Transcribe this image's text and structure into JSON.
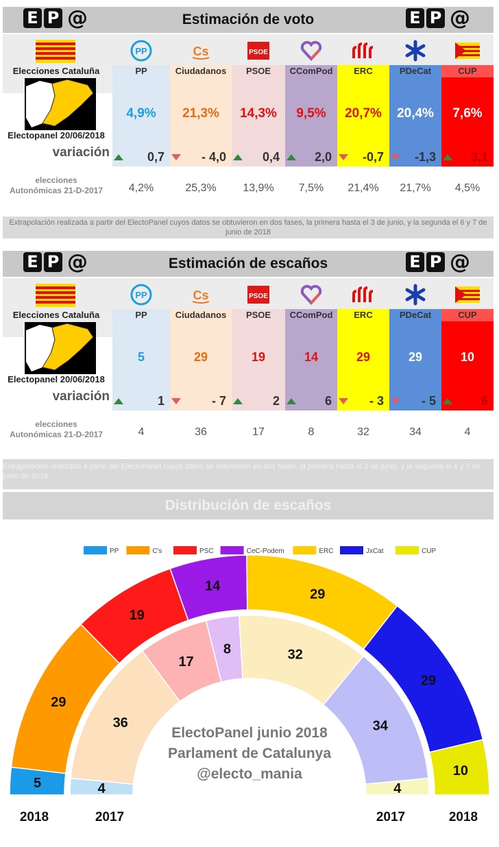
{
  "parties": [
    {
      "name": "PP",
      "color": "#dce9f5",
      "val_color": "#1aa0e0",
      "icon": "pp-logo-icon"
    },
    {
      "name": "Ciudadanos",
      "color": "#fde6d2",
      "val_color": "#e86c10",
      "icon": "cs-logo-icon"
    },
    {
      "name": "PSOE",
      "color": "#f3dada",
      "val_color": "#e01010",
      "icon": "psoe-logo-icon"
    },
    {
      "name": "CComPod",
      "color": "#b9a6cc",
      "val_color": "#e01010",
      "icon": "heart-logo-icon"
    },
    {
      "name": "ERC",
      "color": "#ffff00",
      "val_color": "#e01010",
      "icon": "erc-logo-icon"
    },
    {
      "name": "PDeCat",
      "color": "#5b8ed8",
      "val_color": "#ffffff",
      "icon": "star-logo-icon"
    },
    {
      "name": "CUP",
      "color": "#ff0000",
      "val_color": "#ffffff",
      "icon": "cup-flag-icon"
    }
  ],
  "header_labels": {
    "colname_bg_cup": "#ff5050"
  },
  "section1": {
    "title": "Estimación de voto",
    "left_header": "Elecciones Cataluña",
    "panel_label": "Electopanel 20/06/2018",
    "variacion_label": "variación",
    "prev_label_1": "elecciones",
    "prev_label_2": "Autonómicas 21-D-2017",
    "values": [
      "4,9%",
      "21,3%",
      "14,3%",
      "9,5%",
      "20,7%",
      "20,4%",
      "7,6%"
    ],
    "variations": [
      {
        "dir": "up",
        "text": "0,7"
      },
      {
        "dir": "down",
        "text": "- 4,0"
      },
      {
        "dir": "up",
        "text": "0,4"
      },
      {
        "dir": "up",
        "text": "2,0"
      },
      {
        "dir": "down",
        "text": "-0,7"
      },
      {
        "dir": "down",
        "text": "-1,3"
      },
      {
        "dir": "up",
        "text": "3,1"
      }
    ],
    "previous": [
      "4,2%",
      "25,3%",
      "13,9%",
      "7,5%",
      "21,4%",
      "21,7%",
      "4,5%"
    ],
    "note": "Extrapolación realizada a partir del ElectoPanel cuyos datos se obtuvieron en dos fases, la primera hasta el 3 de junio, y la segunda el 6 y 7 de junio de 2018"
  },
  "section2": {
    "title": "Estimación de escaños",
    "left_header": "Elecciones Cataluña",
    "panel_label": "Electopanel 20/06/2018",
    "variacion_label": "variación",
    "prev_label_1": "elecciones",
    "prev_label_2": "Autonómicas 21-D-2017",
    "values": [
      "5",
      "29",
      "19",
      "14",
      "29",
      "29",
      "10"
    ],
    "variations": [
      {
        "dir": "up",
        "text": "1"
      },
      {
        "dir": "down",
        "text": "-  7"
      },
      {
        "dir": "up",
        "text": "2"
      },
      {
        "dir": "up",
        "text": "6"
      },
      {
        "dir": "down",
        "text": "-  3"
      },
      {
        "dir": "down",
        "text": "-  5"
      },
      {
        "dir": "up",
        "text": "6"
      }
    ],
    "previous": [
      "4",
      "36",
      "17",
      "8",
      "32",
      "34",
      "4"
    ],
    "note": "Extrapolación realizada a partir del ElectoPanel cuyos datos se obtuvieron en dos fases, la primera hasta el 3 de junio, y la segunda el 6 y 7 de junio de 2018"
  },
  "logo": {
    "e": "E",
    "p": "P",
    "at": "@"
  },
  "distribution_title": "Distribución de escaños",
  "chart_data": {
    "type": "hemicycle",
    "legend": [
      {
        "name": "PP",
        "color": "#1a9ae8"
      },
      {
        "name": "C's",
        "color": "#ff9900"
      },
      {
        "name": "PSC",
        "color": "#ff1a1a"
      },
      {
        "name": "CeC-Podem",
        "color": "#9b1ae8"
      },
      {
        "name": "ERC",
        "color": "#ffcc00"
      },
      {
        "name": "JxCat",
        "color": "#1a1ae8"
      },
      {
        "name": "CUP",
        "color": "#e8e800"
      }
    ],
    "series": [
      {
        "name": "2018",
        "values": [
          5,
          29,
          19,
          14,
          29,
          29,
          10
        ],
        "colors": [
          "#1a9ae8",
          "#ff9900",
          "#ff1a1a",
          "#9b1ae8",
          "#ffcc00",
          "#1a1ae8",
          "#e8e800"
        ]
      },
      {
        "name": "2017",
        "values": [
          4,
          36,
          17,
          8,
          32,
          34,
          4
        ],
        "colors": [
          "#bde0f7",
          "#fde0bd",
          "#fdb3b3",
          "#e0bdf7",
          "#fdecbd",
          "#bdbdf7",
          "#f7f7bd"
        ]
      }
    ],
    "total": 135,
    "center_text": [
      "ElectoPanel junio 2018",
      "Parlament de Catalunya",
      "@electo_mania"
    ],
    "bottom_labels": [
      "2018",
      "2017",
      "2017",
      "2018"
    ]
  }
}
